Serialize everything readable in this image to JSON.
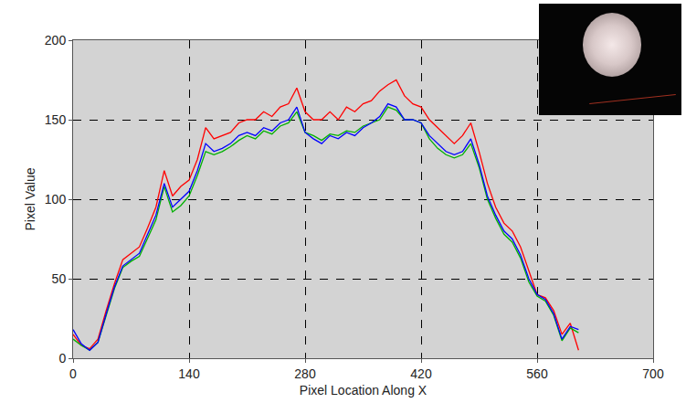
{
  "chart_data": {
    "type": "line",
    "x_label": "Pixel Location Along X",
    "y_label": "Pixel Value",
    "x": [
      0,
      10,
      20,
      30,
      40,
      50,
      60,
      70,
      80,
      90,
      100,
      110,
      120,
      130,
      140,
      150,
      160,
      170,
      180,
      190,
      200,
      210,
      220,
      230,
      240,
      250,
      260,
      270,
      280,
      290,
      300,
      310,
      320,
      330,
      340,
      350,
      360,
      370,
      380,
      390,
      400,
      410,
      420,
      430,
      440,
      450,
      460,
      470,
      480,
      490,
      500,
      510,
      520,
      530,
      540,
      550,
      560,
      570,
      580,
      590,
      600,
      610
    ],
    "series": [
      {
        "color": "#ff0000",
        "values": [
          15,
          8,
          6,
          12,
          30,
          47,
          62,
          66,
          70,
          82,
          95,
          118,
          102,
          108,
          112,
          125,
          145,
          138,
          140,
          142,
          148,
          150,
          150,
          155,
          152,
          158,
          160,
          170,
          155,
          150,
          150,
          155,
          150,
          158,
          155,
          160,
          162,
          168,
          172,
          175,
          165,
          160,
          158,
          150,
          145,
          140,
          135,
          140,
          148,
          130,
          110,
          95,
          85,
          80,
          70,
          55,
          40,
          38,
          30,
          15,
          22,
          5
        ]
      },
      {
        "color": "#00b000",
        "values": [
          12,
          8,
          5,
          10,
          27,
          44,
          57,
          61,
          64,
          76,
          87,
          108,
          92,
          96,
          102,
          115,
          130,
          128,
          130,
          133,
          137,
          140,
          138,
          143,
          141,
          146,
          148,
          155,
          142,
          140,
          137,
          141,
          140,
          143,
          142,
          146,
          148,
          150,
          158,
          156,
          150,
          150,
          148,
          138,
          132,
          128,
          126,
          128,
          135,
          120,
          100,
          88,
          78,
          73,
          63,
          48,
          39,
          36,
          27,
          11,
          19,
          16
        ]
      },
      {
        "color": "#0000ff",
        "values": [
          18,
          9,
          5,
          10,
          28,
          45,
          58,
          62,
          66,
          78,
          90,
          110,
          95,
          100,
          105,
          118,
          135,
          130,
          132,
          135,
          140,
          142,
          140,
          145,
          143,
          148,
          150,
          158,
          142,
          138,
          135,
          140,
          138,
          142,
          140,
          145,
          148,
          152,
          160,
          158,
          150,
          150,
          148,
          140,
          135,
          130,
          128,
          130,
          138,
          122,
          102,
          90,
          80,
          75,
          65,
          50,
          40,
          37,
          28,
          12,
          20,
          18
        ]
      }
    ],
    "xlim": [
      0,
      700
    ],
    "xticks": [
      0,
      140,
      280,
      420,
      560,
      700
    ],
    "ylim": [
      0,
      200
    ],
    "yticks": [
      0,
      50,
      100,
      150,
      200
    ],
    "grid": true
  }
}
